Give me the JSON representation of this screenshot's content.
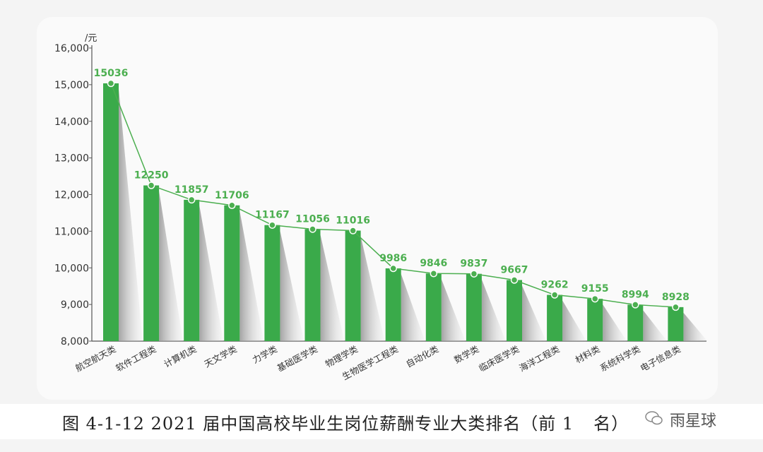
{
  "chart_data": {
    "type": "bar",
    "title": "",
    "ylabel": "/元",
    "xlabel": "",
    "ylim": [
      8000,
      16000
    ],
    "yticks": [
      "8,000",
      "9,000",
      "10,000",
      "11,000",
      "12,000",
      "13,000",
      "14,000",
      "15,000",
      "16,000"
    ],
    "grid": false,
    "categories": [
      "航空航天类",
      "软件工程类",
      "计算机类",
      "天文学类",
      "力学类",
      "基础医学类",
      "物理学类",
      "生物医学工程类",
      "自动化类",
      "数学类",
      "临床医学类",
      "海洋工程类",
      "材料类",
      "系统科学类",
      "电子信息类"
    ],
    "values": [
      15036,
      12250,
      11857,
      11706,
      11167,
      11056,
      11016,
      9986,
      9846,
      9837,
      9667,
      9262,
      9155,
      8994,
      8928
    ],
    "overlay_line": true,
    "bar_color": "#3aaa4a",
    "label_color": "#4caf50"
  },
  "caption": "图 4-1-12   2021 届中国高校毕业生岗位薪酬专业大类排名（前 1",
  "caption_end": "名）",
  "watermark": "雨星球",
  "watermark_icon": "wechat-icon"
}
